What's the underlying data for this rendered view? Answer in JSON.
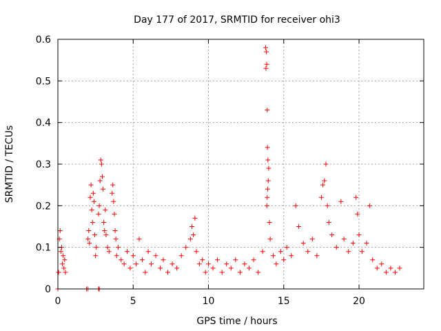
{
  "chart_data": {
    "type": "scatter",
    "title": "Day 177 of 2017, SRMTID for receiver ohi3",
    "xlabel": "GPS time / hours",
    "ylabel": "SRMTID / TECUs",
    "xlim": [
      0,
      24.3
    ],
    "ylim": [
      0,
      0.6
    ],
    "xticks": [
      0,
      5,
      10,
      15,
      20
    ],
    "yticks": [
      0,
      0.1,
      0.2,
      0.3,
      0.4,
      0.5,
      0.6
    ],
    "xtick_labels": [
      "0",
      "5",
      "10",
      "15",
      "20"
    ],
    "ytick_labels": [
      "0",
      "0.1",
      "0.2",
      "0.3",
      "0.4",
      "0.5",
      "0.6"
    ],
    "grid": true,
    "marker": "plus",
    "color": "#ff0000",
    "series": [
      {
        "name": "SRMTID",
        "points": [
          [
            0.0,
            0.0
          ],
          [
            0.05,
            0.04
          ],
          [
            0.1,
            0.12
          ],
          [
            0.15,
            0.14
          ],
          [
            0.2,
            0.09
          ],
          [
            0.25,
            0.1
          ],
          [
            0.3,
            0.06
          ],
          [
            0.35,
            0.08
          ],
          [
            0.4,
            0.05
          ],
          [
            0.45,
            0.07
          ],
          [
            0.5,
            0.04
          ],
          [
            1.9,
            0.0
          ],
          [
            2.0,
            0.0
          ],
          [
            2.7,
            0.0
          ],
          [
            2.75,
            0.0
          ],
          [
            2.0,
            0.12
          ],
          [
            2.05,
            0.14
          ],
          [
            2.1,
            0.11
          ],
          [
            2.15,
            0.22
          ],
          [
            2.2,
            0.25
          ],
          [
            2.25,
            0.19
          ],
          [
            2.3,
            0.16
          ],
          [
            2.35,
            0.23
          ],
          [
            2.4,
            0.21
          ],
          [
            2.45,
            0.13
          ],
          [
            2.5,
            0.08
          ],
          [
            2.55,
            0.1
          ],
          [
            2.7,
            0.18
          ],
          [
            2.75,
            0.2
          ],
          [
            2.8,
            0.26
          ],
          [
            2.85,
            0.31
          ],
          [
            2.9,
            0.3
          ],
          [
            2.95,
            0.27
          ],
          [
            3.0,
            0.24
          ],
          [
            3.05,
            0.16
          ],
          [
            3.1,
            0.14
          ],
          [
            3.15,
            0.19
          ],
          [
            3.2,
            0.13
          ],
          [
            3.3,
            0.1
          ],
          [
            3.4,
            0.09
          ],
          [
            3.6,
            0.23
          ],
          [
            3.65,
            0.25
          ],
          [
            3.7,
            0.21
          ],
          [
            3.75,
            0.18
          ],
          [
            3.8,
            0.14
          ],
          [
            3.85,
            0.12
          ],
          [
            3.9,
            0.08
          ],
          [
            4.0,
            0.1
          ],
          [
            4.2,
            0.07
          ],
          [
            4.4,
            0.06
          ],
          [
            4.6,
            0.09
          ],
          [
            4.8,
            0.05
          ],
          [
            5.0,
            0.08
          ],
          [
            5.2,
            0.06
          ],
          [
            5.4,
            0.12
          ],
          [
            5.6,
            0.07
          ],
          [
            5.8,
            0.04
          ],
          [
            6.0,
            0.09
          ],
          [
            6.2,
            0.06
          ],
          [
            6.5,
            0.08
          ],
          [
            6.8,
            0.05
          ],
          [
            7.0,
            0.07
          ],
          [
            7.3,
            0.04
          ],
          [
            7.6,
            0.06
          ],
          [
            7.9,
            0.05
          ],
          [
            8.2,
            0.08
          ],
          [
            8.5,
            0.1
          ],
          [
            8.8,
            0.12
          ],
          [
            8.9,
            0.15
          ],
          [
            9.0,
            0.13
          ],
          [
            9.1,
            0.17
          ],
          [
            9.2,
            0.09
          ],
          [
            9.4,
            0.06
          ],
          [
            9.6,
            0.07
          ],
          [
            9.8,
            0.04
          ],
          [
            10.0,
            0.06
          ],
          [
            10.3,
            0.05
          ],
          [
            10.6,
            0.07
          ],
          [
            10.9,
            0.04
          ],
          [
            11.2,
            0.06
          ],
          [
            11.5,
            0.05
          ],
          [
            11.8,
            0.07
          ],
          [
            12.1,
            0.04
          ],
          [
            12.4,
            0.06
          ],
          [
            12.7,
            0.05
          ],
          [
            13.0,
            0.07
          ],
          [
            13.3,
            0.04
          ],
          [
            13.6,
            0.09
          ],
          [
            13.8,
            0.58
          ],
          [
            13.85,
            0.57
          ],
          [
            13.82,
            0.53
          ],
          [
            13.87,
            0.54
          ],
          [
            13.9,
            0.43
          ],
          [
            13.92,
            0.34
          ],
          [
            13.95,
            0.31
          ],
          [
            14.0,
            0.29
          ],
          [
            13.97,
            0.26
          ],
          [
            13.93,
            0.24
          ],
          [
            13.9,
            0.22
          ],
          [
            13.88,
            0.2
          ],
          [
            14.05,
            0.16
          ],
          [
            14.1,
            0.12
          ],
          [
            14.3,
            0.08
          ],
          [
            14.5,
            0.06
          ],
          [
            14.8,
            0.09
          ],
          [
            15.0,
            0.07
          ],
          [
            15.2,
            0.1
          ],
          [
            15.5,
            0.08
          ],
          [
            15.8,
            0.2
          ],
          [
            16.0,
            0.15
          ],
          [
            16.3,
            0.11
          ],
          [
            16.6,
            0.09
          ],
          [
            16.9,
            0.12
          ],
          [
            17.2,
            0.08
          ],
          [
            17.5,
            0.22
          ],
          [
            17.6,
            0.25
          ],
          [
            17.7,
            0.26
          ],
          [
            17.8,
            0.3
          ],
          [
            17.9,
            0.2
          ],
          [
            18.0,
            0.16
          ],
          [
            18.2,
            0.13
          ],
          [
            18.5,
            0.1
          ],
          [
            18.8,
            0.21
          ],
          [
            19.0,
            0.12
          ],
          [
            19.3,
            0.09
          ],
          [
            19.6,
            0.11
          ],
          [
            19.8,
            0.22
          ],
          [
            19.9,
            0.18
          ],
          [
            20.0,
            0.13
          ],
          [
            20.2,
            0.09
          ],
          [
            20.5,
            0.11
          ],
          [
            20.7,
            0.2
          ],
          [
            20.9,
            0.07
          ],
          [
            21.2,
            0.05
          ],
          [
            21.5,
            0.06
          ],
          [
            21.8,
            0.04
          ],
          [
            22.1,
            0.05
          ],
          [
            22.4,
            0.04
          ],
          [
            22.7,
            0.05
          ]
        ]
      }
    ]
  }
}
